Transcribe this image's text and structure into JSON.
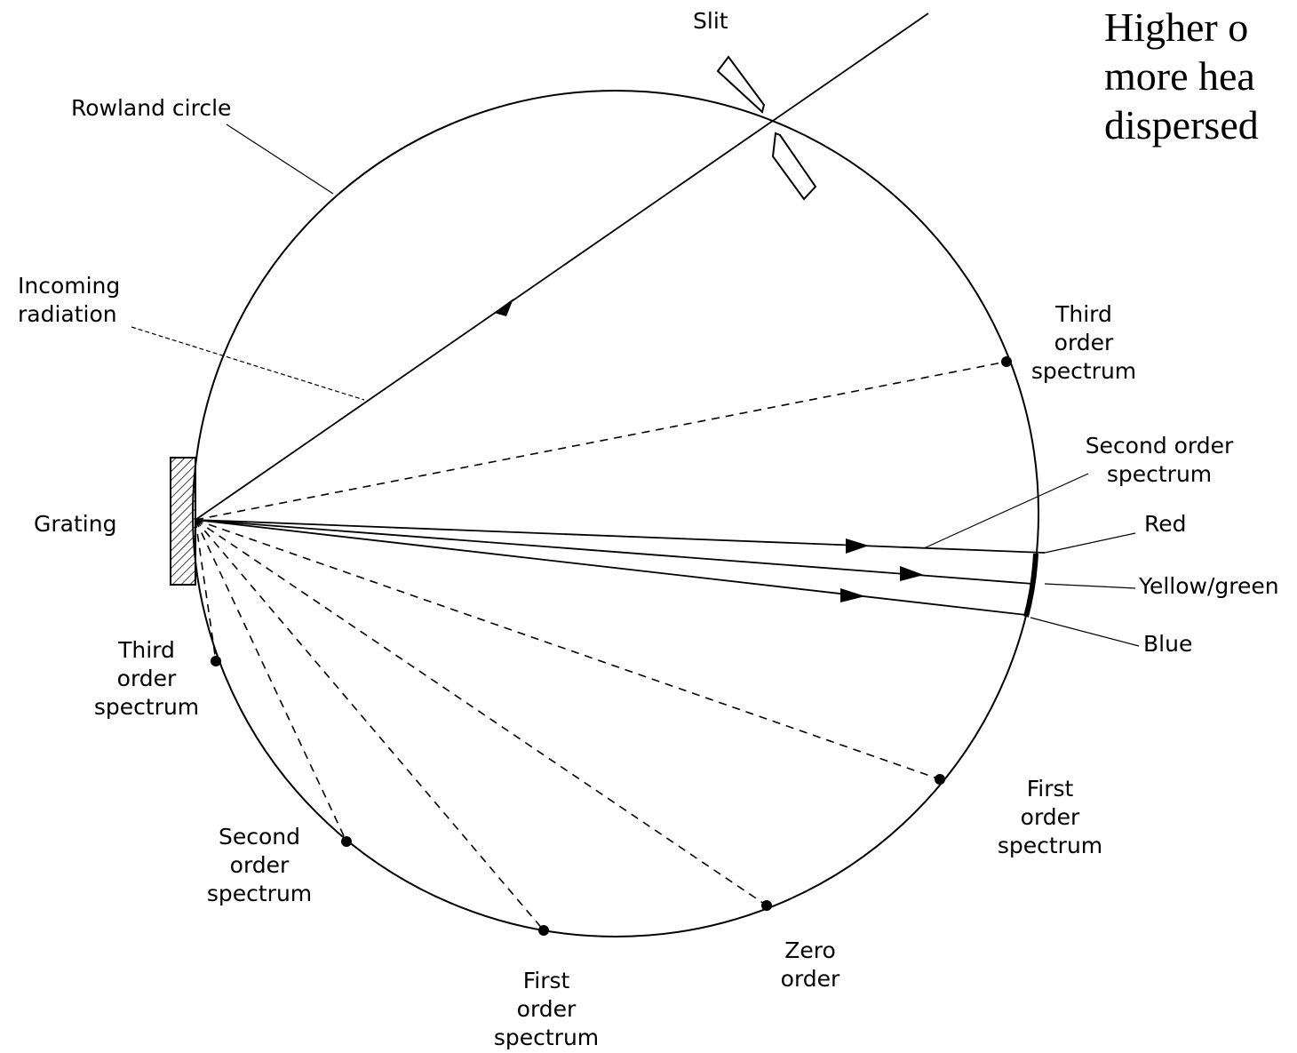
{
  "note": {
    "lines": [
      "Higher o",
      "more hea",
      "dispersed"
    ]
  },
  "labels": {
    "slit": "Slit",
    "rowland_circle": "Rowland circle",
    "incoming_radiation": [
      "Incoming",
      "radiation"
    ],
    "grating": "Grating",
    "third_order_upper": [
      "Third",
      "order",
      "spectrum"
    ],
    "second_order_upper": [
      "Second order",
      "spectrum"
    ],
    "red": "Red",
    "yellow_green": "Yellow/green",
    "blue": "Blue",
    "third_order_lower": [
      "Third",
      "order",
      "spectrum"
    ],
    "second_order_lower": [
      "Second",
      "order",
      "spectrum"
    ],
    "first_order_lower": [
      "First",
      "order",
      "spectrum"
    ],
    "zero_order": [
      "Zero",
      "order"
    ],
    "first_order_right": [
      "First",
      "order",
      "spectrum"
    ]
  }
}
